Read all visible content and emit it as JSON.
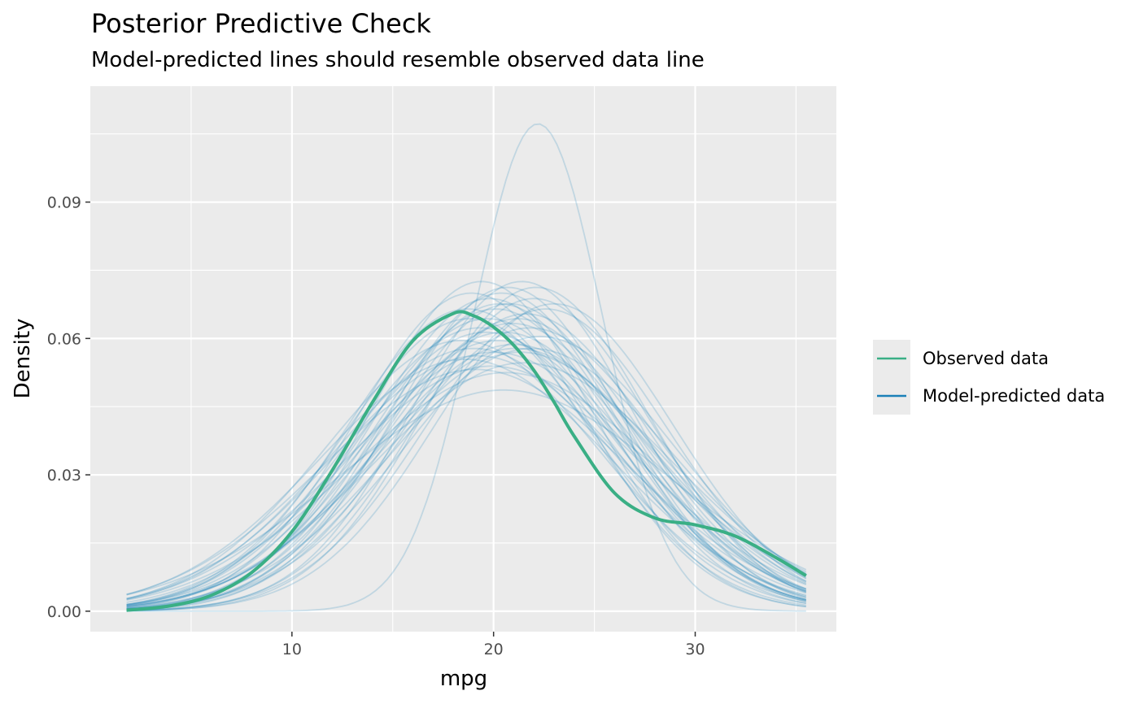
{
  "chart_data": {
    "type": "line",
    "title": "Posterior Predictive Check",
    "subtitle": "Model-predicted lines should resemble observed data line",
    "xlabel": "mpg",
    "ylabel": "Density",
    "xlim": [
      0.0,
      37.0
    ],
    "ylim": [
      -0.0045,
      0.1155
    ],
    "x_ticks": [
      10,
      20,
      30
    ],
    "x_minor": [
      5,
      15,
      25,
      35
    ],
    "y_ticks": [
      0.0,
      0.03,
      0.06,
      0.09
    ],
    "y_tick_labels": [
      "0.00",
      "0.03",
      "0.06",
      "0.09"
    ],
    "y_minor": [
      0.015,
      0.045,
      0.075,
      0.105
    ],
    "grid": true,
    "legend_position": "right",
    "observed_color": "#3aaf85",
    "predicted_color": "#1b80b8",
    "series": [
      {
        "name": "Observed data",
        "x": [
          1.8,
          4,
          6,
          8,
          10,
          12,
          14,
          16,
          18,
          19,
          20,
          21,
          22,
          23,
          24,
          26,
          28,
          30,
          32,
          34,
          35.5
        ],
        "values": [
          0.0002,
          0.0012,
          0.0035,
          0.0085,
          0.0175,
          0.031,
          0.046,
          0.0595,
          0.0655,
          0.065,
          0.0625,
          0.0585,
          0.053,
          0.046,
          0.0385,
          0.026,
          0.0205,
          0.019,
          0.0165,
          0.0118,
          0.0078
        ]
      },
      {
        "name": "Model-predicted data",
        "draws": [
          {
            "mean": 18.8,
            "sd": 6.2,
            "scale": 1.0
          },
          {
            "mean": 19.6,
            "sd": 6.5,
            "scale": 1.0
          },
          {
            "mean": 20.3,
            "sd": 5.9,
            "scale": 1.0
          },
          {
            "mean": 21.0,
            "sd": 6.8,
            "scale": 1.0
          },
          {
            "mean": 19.2,
            "sd": 7.1,
            "scale": 1.0
          },
          {
            "mean": 20.7,
            "sd": 5.6,
            "scale": 1.0
          },
          {
            "mean": 21.6,
            "sd": 6.1,
            "scale": 1.0
          },
          {
            "mean": 18.4,
            "sd": 6.7,
            "scale": 1.0
          },
          {
            "mean": 22.0,
            "sd": 5.8,
            "scale": 1.0
          },
          {
            "mean": 19.9,
            "sd": 7.4,
            "scale": 1.0
          },
          {
            "mean": 20.9,
            "sd": 6.3,
            "scale": 1.0
          },
          {
            "mean": 18.9,
            "sd": 5.7,
            "scale": 1.0
          },
          {
            "mean": 21.3,
            "sd": 7.0,
            "scale": 1.0
          },
          {
            "mean": 20.1,
            "sd": 6.0,
            "scale": 1.0
          },
          {
            "mean": 22.3,
            "sd": 6.6,
            "scale": 1.0
          },
          {
            "mean": 19.4,
            "sd": 5.5,
            "scale": 1.0
          },
          {
            "mean": 20.6,
            "sd": 7.6,
            "scale": 1.0
          },
          {
            "mean": 21.8,
            "sd": 6.4,
            "scale": 1.0
          },
          {
            "mean": 18.6,
            "sd": 7.2,
            "scale": 1.0
          },
          {
            "mean": 20.4,
            "sd": 5.7,
            "scale": 1.0
          },
          {
            "mean": 21.1,
            "sd": 6.9,
            "scale": 1.0
          },
          {
            "mean": 19.7,
            "sd": 6.2,
            "scale": 1.0
          },
          {
            "mean": 22.6,
            "sd": 6.0,
            "scale": 1.0
          },
          {
            "mean": 19.0,
            "sd": 6.9,
            "scale": 1.0
          },
          {
            "mean": 20.8,
            "sd": 5.9,
            "scale": 1.0
          },
          {
            "mean": 21.5,
            "sd": 7.3,
            "scale": 1.0
          },
          {
            "mean": 19.3,
            "sd": 6.4,
            "scale": 1.0
          },
          {
            "mean": 20.0,
            "sd": 7.0,
            "scale": 1.0
          },
          {
            "mean": 22.1,
            "sd": 5.6,
            "scale": 1.0
          },
          {
            "mean": 18.7,
            "sd": 6.0,
            "scale": 1.0
          },
          {
            "mean": 21.2,
            "sd": 6.2,
            "scale": 1.0
          },
          {
            "mean": 20.2,
            "sd": 6.7,
            "scale": 1.0
          },
          {
            "mean": 19.8,
            "sd": 5.8,
            "scale": 1.0
          },
          {
            "mean": 21.9,
            "sd": 6.9,
            "scale": 1.0
          },
          {
            "mean": 20.5,
            "sd": 6.5,
            "scale": 1.0
          },
          {
            "mean": 19.1,
            "sd": 7.5,
            "scale": 1.0
          },
          {
            "mean": 21.4,
            "sd": 5.5,
            "scale": 1.0
          },
          {
            "mean": 22.2,
            "sd": 3.2,
            "scale": 0.86
          },
          {
            "mean": 20.5,
            "sd": 8.2,
            "scale": 1.0
          },
          {
            "mean": 23.0,
            "sd": 5.9,
            "scale": 1.0
          }
        ]
      }
    ],
    "legend": [
      {
        "label": "Observed data"
      },
      {
        "label": "Model-predicted data"
      }
    ]
  }
}
